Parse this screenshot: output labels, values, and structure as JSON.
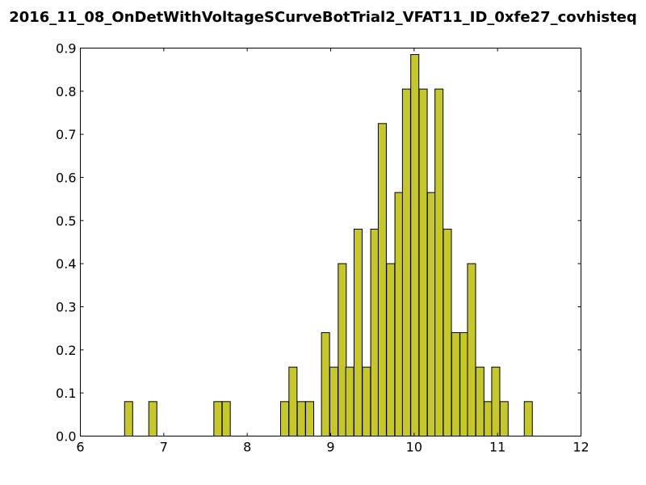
{
  "chart_data": {
    "type": "bar",
    "title": "2016_11_08_OnDetWithVoltageSCurveBotTrial2_VFAT11_ID_0xfe27_covhisteq",
    "xlabel": "",
    "ylabel": "",
    "xlim": [
      6,
      12
    ],
    "ylim": [
      0,
      0.9
    ],
    "xticks": [
      "6",
      "7",
      "8",
      "9",
      "10",
      "11",
      "12"
    ],
    "yticks": [
      "0.0",
      "0.1",
      "0.2",
      "0.3",
      "0.4",
      "0.5",
      "0.6",
      "0.7",
      "0.8",
      "0.9"
    ],
    "bin_width": 0.097,
    "bar_color": "#c6c62d",
    "bins_x": [
      6.53,
      6.82,
      7.6,
      7.7,
      8.4,
      8.5,
      8.6,
      8.7,
      8.89,
      8.99,
      9.09,
      9.18,
      9.28,
      9.38,
      9.48,
      9.57,
      9.67,
      9.77,
      9.86,
      9.96,
      10.06,
      10.16,
      10.25,
      10.35,
      10.45,
      10.55,
      10.64,
      10.74,
      10.84,
      10.93,
      11.03,
      11.32
    ],
    "values": [
      0.08,
      0.08,
      0.08,
      0.08,
      0.08,
      0.16,
      0.08,
      0.08,
      0.24,
      0.16,
      0.4,
      0.16,
      0.48,
      0.16,
      0.48,
      0.725,
      0.4,
      0.565,
      0.805,
      0.885,
      0.805,
      0.565,
      0.805,
      0.48,
      0.24,
      0.24,
      0.4,
      0.16,
      0.08,
      0.16,
      0.08,
      0.08
    ]
  }
}
